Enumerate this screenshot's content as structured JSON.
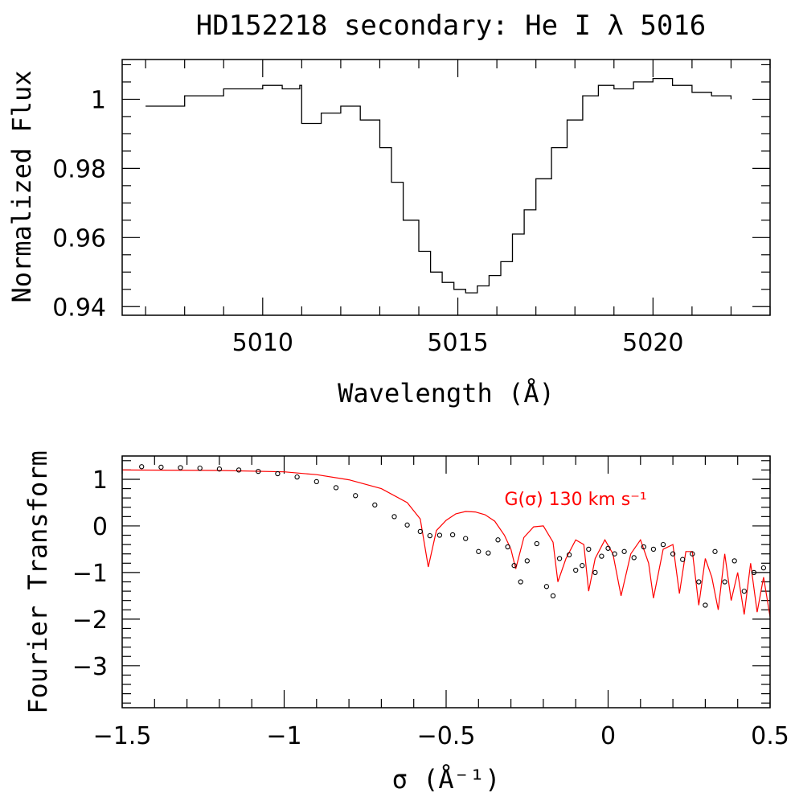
{
  "chart_data": [
    {
      "type": "line",
      "title": "HD152218 secondary: He I λ 5016",
      "xlabel": "Wavelength (Å)",
      "ylabel": "Normalized Flux",
      "xlim": [
        5006.4,
        5023.0
      ],
      "ylim": [
        0.9375,
        1.0115
      ],
      "xticks": [
        5010,
        5015,
        5020
      ],
      "yticks": [
        0.94,
        0.96,
        0.98,
        1.0
      ],
      "ytick_labels": [
        "0.94",
        "0.96",
        "0.98",
        "1"
      ],
      "series": [
        {
          "color": "#000000",
          "style": "step",
          "x": [
            5007.0,
            5008.0,
            5009.0,
            5010.0,
            5010.5,
            5010.95,
            5011.0,
            5011.5,
            5012.0,
            5012.5,
            5013.0,
            5013.3,
            5013.6,
            5014.0,
            5014.3,
            5014.6,
            5014.9,
            5015.2,
            5015.5,
            5015.8,
            5016.1,
            5016.4,
            5016.7,
            5017.0,
            5017.4,
            5017.8,
            5018.2,
            5018.6,
            5019.0,
            5019.5,
            5020.0,
            5020.5,
            5021.0,
            5021.5,
            5022.0
          ],
          "y": [
            0.998,
            1.001,
            1.003,
            1.004,
            1.003,
            1.004,
            0.993,
            0.996,
            0.998,
            0.994,
            0.986,
            0.976,
            0.965,
            0.956,
            0.95,
            0.947,
            0.945,
            0.944,
            0.946,
            0.949,
            0.953,
            0.961,
            0.968,
            0.977,
            0.986,
            0.994,
            1.001,
            1.004,
            1.003,
            1.005,
            1.006,
            1.004,
            1.002,
            1.001,
            1.0
          ]
        }
      ]
    },
    {
      "type": "scatter",
      "xlabel": "σ (Å⁻¹)",
      "ylabel": "Fourier Transform",
      "xlim": [
        -1.5,
        0.5
      ],
      "ylim": [
        -3.9,
        1.5
      ],
      "xticks": [
        -1.5,
        -1,
        -0.5,
        0,
        0.5
      ],
      "xtick_labels": [
        "−1.5",
        "−1",
        "−0.5",
        "0",
        "0.5"
      ],
      "yticks": [
        -3,
        -2,
        -1,
        0,
        1
      ],
      "ytick_labels": [
        "−3",
        "−2",
        "−1",
        "0",
        "1"
      ],
      "annotation": {
        "text": "G(σ) 130 km s⁻¹",
        "color": "#ff0000",
        "x": -0.32,
        "y": 0.45
      },
      "series": [
        {
          "color": "#000000",
          "marker": "open-circle",
          "x": [
            -1.44,
            -1.38,
            -1.32,
            -1.26,
            -1.2,
            -1.14,
            -1.08,
            -1.02,
            -0.96,
            -0.9,
            -0.84,
            -0.78,
            -0.72,
            -0.66,
            -0.62,
            -0.58,
            -0.55,
            -0.52,
            -0.48,
            -0.44,
            -0.4,
            -0.37,
            -0.34,
            -0.31,
            -0.29,
            -0.27,
            -0.25,
            -0.22,
            -0.19,
            -0.17,
            -0.15,
            -0.12,
            -0.1,
            -0.08,
            -0.06,
            -0.04,
            -0.02,
            0.0,
            0.02,
            0.05,
            0.08,
            0.11,
            0.14,
            0.17,
            0.2,
            0.23,
            0.26,
            0.28,
            0.3,
            0.33,
            0.36,
            0.39,
            0.42,
            0.45,
            0.48
          ],
          "y": [
            1.27,
            1.26,
            1.25,
            1.24,
            1.22,
            1.2,
            1.17,
            1.12,
            1.05,
            0.95,
            0.82,
            0.65,
            0.45,
            0.2,
            0.02,
            -0.12,
            -0.21,
            -0.2,
            -0.19,
            -0.27,
            -0.55,
            -0.58,
            -0.3,
            -0.45,
            -0.85,
            -1.2,
            -0.75,
            -0.38,
            -1.3,
            -1.5,
            -0.7,
            -0.62,
            -0.95,
            -0.85,
            -0.5,
            -1.0,
            -0.65,
            -0.48,
            -0.6,
            -0.55,
            -0.68,
            -0.45,
            -0.5,
            -0.4,
            -0.6,
            -0.72,
            -0.6,
            -1.2,
            -1.7,
            -0.55,
            -1.2,
            -0.75,
            -1.4,
            -1.0,
            -0.9
          ]
        },
        {
          "color": "#ff0000",
          "style": "line",
          "x": [
            -1.5,
            -1.2,
            -1.0,
            -0.9,
            -0.8,
            -0.7,
            -0.62,
            -0.58,
            -0.555,
            -0.53,
            -0.5,
            -0.47,
            -0.44,
            -0.41,
            -0.38,
            -0.35,
            -0.32,
            -0.3,
            -0.285,
            -0.26,
            -0.23,
            -0.2,
            -0.17,
            -0.155,
            -0.13,
            -0.1,
            -0.075,
            -0.06,
            -0.04,
            -0.01,
            0.015,
            0.04,
            0.07,
            0.1,
            0.125,
            0.14,
            0.17,
            0.2,
            0.22,
            0.24,
            0.26,
            0.28,
            0.3,
            0.32,
            0.34,
            0.36,
            0.38,
            0.4,
            0.42,
            0.44,
            0.46,
            0.48,
            0.5
          ],
          "y": [
            1.2,
            1.19,
            1.16,
            1.1,
            0.99,
            0.8,
            0.5,
            0.15,
            -0.88,
            -0.1,
            0.12,
            0.26,
            0.31,
            0.3,
            0.24,
            0.1,
            -0.2,
            -0.5,
            -0.92,
            -0.25,
            -0.02,
            0.0,
            -0.35,
            -1.2,
            -0.7,
            -0.3,
            -0.4,
            -1.4,
            -0.7,
            -0.3,
            -0.6,
            -1.5,
            -0.6,
            -0.3,
            -0.8,
            -1.55,
            -0.5,
            -0.4,
            -1.45,
            -0.55,
            -0.55,
            -1.7,
            -0.7,
            -1.1,
            -1.8,
            -0.6,
            -1.6,
            -1.0,
            -1.9,
            -0.8,
            -1.85,
            -1.1,
            -1.95
          ]
        }
      ]
    }
  ]
}
